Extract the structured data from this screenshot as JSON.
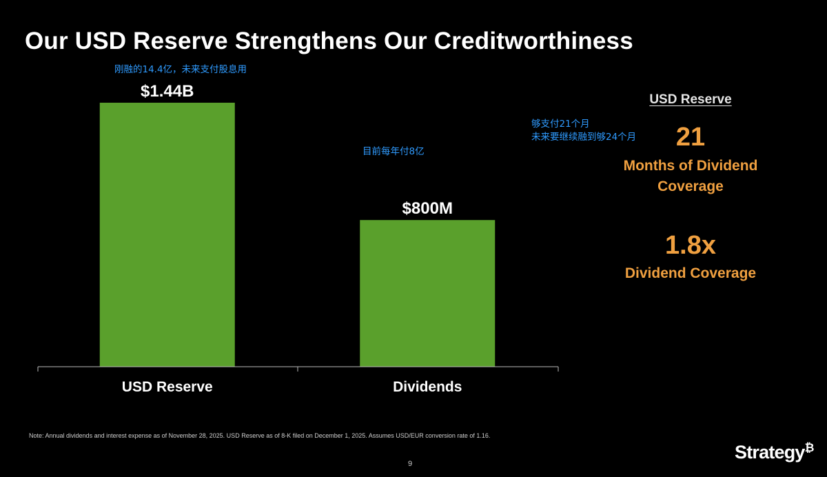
{
  "slide": {
    "title": "Our USD Reserve Strengthens Our Creditworthiness",
    "page_number": "9"
  },
  "annotations": {
    "reserve_note": "刚融的14.4亿，未来支付股息用",
    "dividends_note": "目前每年付8亿",
    "coverage_note_line1": "够支付21个月",
    "coverage_note_line2": "未来要继续融到够24个月"
  },
  "chart_data": {
    "type": "bar",
    "categories": [
      "USD Reserve",
      "Dividends"
    ],
    "values": [
      1.44,
      0.8
    ],
    "value_unit": "billion USD",
    "data_labels": [
      "$1.44B",
      "$800M"
    ],
    "title": "",
    "xlabel": "",
    "ylabel": "",
    "ylim": [
      0,
      1.44
    ],
    "grid": false,
    "bar_color": "#5aa02c"
  },
  "kpis": {
    "heading": "USD Reserve",
    "months_value": "21",
    "months_label_line1": "Months of Dividend",
    "months_label_line2": "Coverage",
    "ratio_value": "1.8x",
    "ratio_label": "Dividend Coverage",
    "accent_color": "#f0a040"
  },
  "footer": {
    "note": "Note: Annual dividends and interest expense as of November 28, 2025. USD Reserve as of 8-K filed on December 1, 2025. Assumes USD/EUR conversion rate of 1.16.",
    "logo_text": "Strategy",
    "logo_mark": "₿"
  }
}
